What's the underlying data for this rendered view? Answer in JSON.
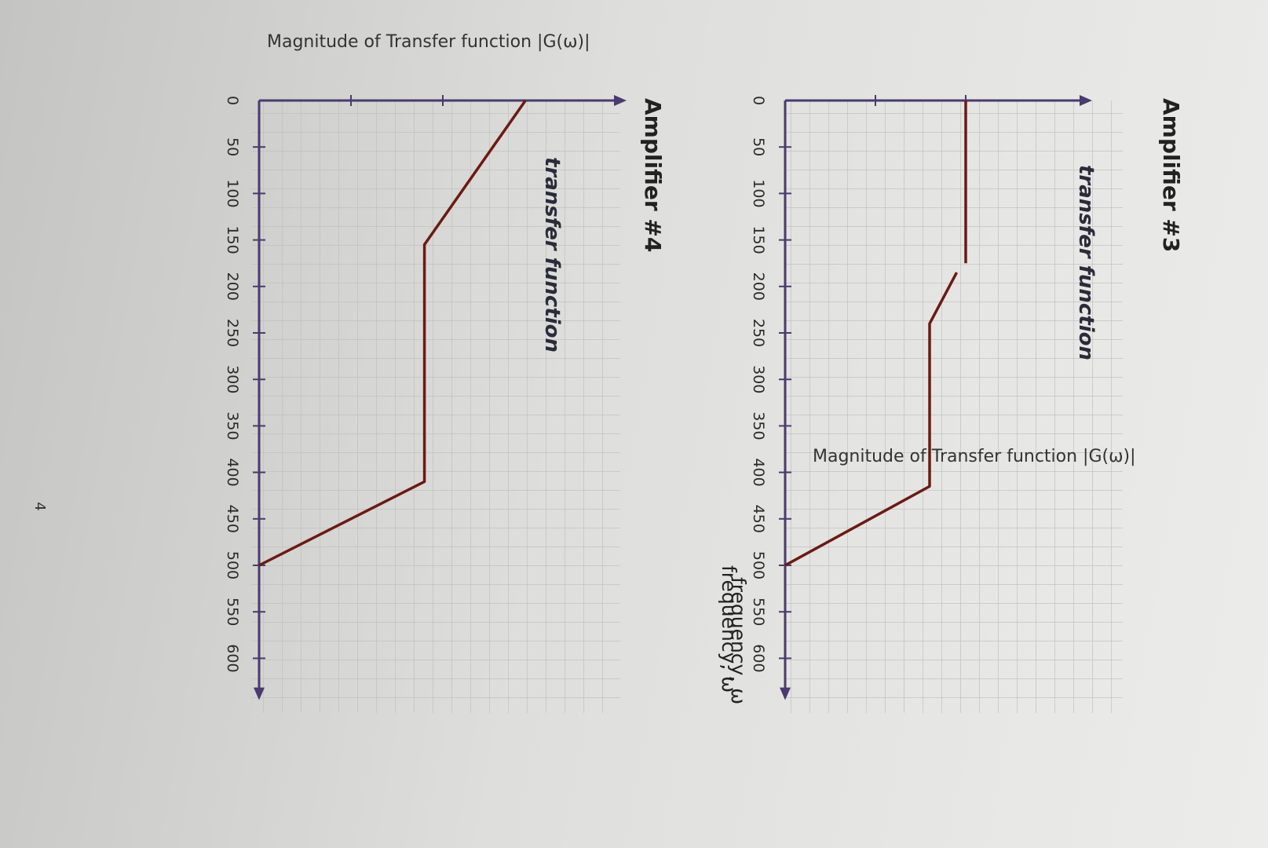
{
  "page": {
    "page_number": "4"
  },
  "colors": {
    "axis": "#4a3a6e",
    "curve": "#6b1a14",
    "grid": "#bcbcbc",
    "paper": "#e4e4e2"
  },
  "chart_data": [
    {
      "type": "line",
      "title": "Amplifier #3",
      "ylabel": "Magnitude of Transfer function |G(ω)|",
      "xlabel": "frequency, ω",
      "legend": "transfer function",
      "x_ticks": [
        "0",
        "50",
        "100",
        "150",
        "200",
        "250",
        "300",
        "350",
        "400",
        "450",
        "500",
        "550",
        "600"
      ],
      "xlim": [
        0,
        650
      ],
      "ylim": [
        0,
        3.4
      ],
      "grid": true,
      "series": [
        {
          "segments": [
            [
              [
                0,
                2
              ],
              [
                175,
                2
              ]
            ],
            [
              [
                185,
                1.9
              ],
              [
                240,
                1.6
              ],
              [
                415,
                1.6
              ],
              [
                500,
                0
              ]
            ]
          ]
        }
      ]
    },
    {
      "type": "line",
      "title": "Amplifier #4",
      "ylabel": "Magnitude of Transfer function |G(ω)|",
      "xlabel": "frequency, ω",
      "legend": "transfer function",
      "x_ticks": [
        "0",
        "50",
        "100",
        "150",
        "200",
        "250",
        "300",
        "350",
        "400",
        "450",
        "500",
        "550",
        "600"
      ],
      "xlim": [
        0,
        650
      ],
      "ylim": [
        0,
        4
      ],
      "grid": true,
      "series": [
        {
          "segments": [
            [
              [
                0,
                2.9
              ],
              [
                155,
                1.8
              ],
              [
                410,
                1.8
              ],
              [
                500,
                0
              ]
            ]
          ]
        }
      ]
    }
  ]
}
